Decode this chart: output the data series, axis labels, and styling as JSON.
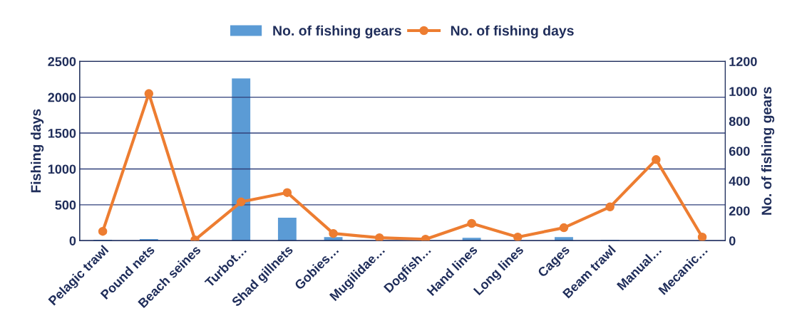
{
  "chart_data": {
    "type": "bar",
    "ylabel": "Fishing days",
    "y2label": "No. of fishing gears",
    "categories": [
      "Pelagic trawl",
      "Pound nets",
      "Beach seines",
      "Turbot…",
      "Shad gillnets",
      "Gobies…",
      "Mugilidae…",
      "Dogfish…",
      "Hand lines",
      "Long lines",
      "Cages",
      "Beam trawl",
      "Manual…",
      "Mecanic…"
    ],
    "series": [
      {
        "name": "No. of fishing gears",
        "axis": "y2",
        "color": "#5b9bd5",
        "values": [
          6,
          11,
          null,
          1086,
          154,
          24,
          null,
          null,
          19,
          null,
          24,
          5,
          0,
          0
        ]
      },
      {
        "name": "No. of fishing days",
        "type": "line",
        "axis": "y",
        "color": "#ed7d31",
        "marker": "circle",
        "values": [
          130,
          2050,
          10,
          540,
          670,
          100,
          40,
          20,
          240,
          50,
          180,
          470,
          1130,
          50
        ]
      }
    ],
    "ylim": [
      0,
      2500
    ],
    "yticks": [
      0,
      500,
      1000,
      1500,
      2000,
      2500
    ],
    "y2lim": [
      0,
      1200
    ],
    "y2ticks": [
      0,
      200,
      400,
      600,
      800,
      1000,
      1200
    ],
    "grid": "y",
    "legend": "top"
  }
}
